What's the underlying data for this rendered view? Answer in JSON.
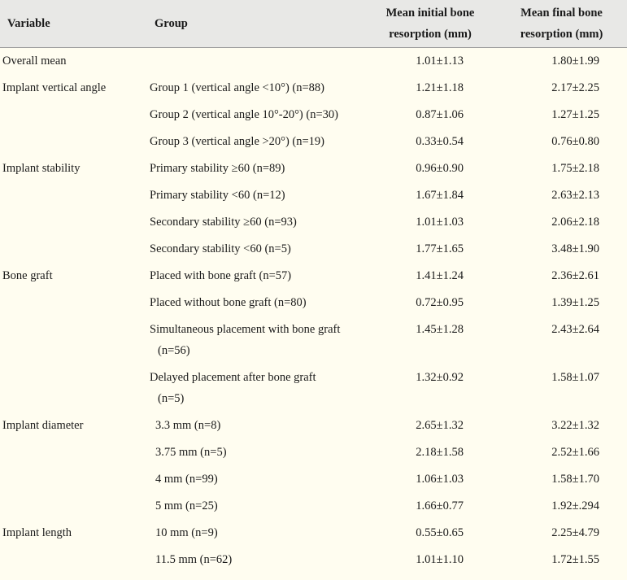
{
  "headers": {
    "variable": "Variable",
    "group": "Group",
    "initial_line1": "Mean initial bone",
    "initial_line2": "resorption (mm)",
    "final_line1": "Mean final bone",
    "final_line2": "resorption (mm)"
  },
  "rows": [
    {
      "variable": "Overall mean",
      "group": "",
      "group_cont": "",
      "initial": "1.01±1.13",
      "final": "1.80±1.99"
    },
    {
      "variable": "Implant vertical angle",
      "group": "Group 1 (vertical angle <10°) (n=88)",
      "group_cont": "",
      "initial": "1.21±1.18",
      "final": "2.17±2.25"
    },
    {
      "variable": "",
      "group": "Group 2 (vertical angle 10°-20°) (n=30)",
      "group_cont": "",
      "initial": "0.87±1.06",
      "final": "1.27±1.25"
    },
    {
      "variable": "",
      "group": "Group 3 (vertical angle >20°) (n=19)",
      "group_cont": "",
      "initial": "0.33±0.54",
      "final": "0.76±0.80"
    },
    {
      "variable": "Implant stability",
      "group": "Primary stability ≥60 (n=89)",
      "group_cont": "",
      "initial": "0.96±0.90",
      "final": "1.75±2.18"
    },
    {
      "variable": "",
      "group": "Primary stability <60 (n=12)",
      "group_cont": "",
      "initial": "1.67±1.84",
      "final": "2.63±2.13"
    },
    {
      "variable": "",
      "group": "Secondary stability ≥60 (n=93)",
      "group_cont": "",
      "initial": "1.01±1.03",
      "final": "2.06±2.18"
    },
    {
      "variable": "",
      "group": "Secondary stability <60 (n=5)",
      "group_cont": "",
      "initial": "1.77±1.65",
      "final": "3.48±1.90"
    },
    {
      "variable": "Bone graft",
      "group": "Placed with bone graft (n=57)",
      "group_cont": "",
      "initial": "1.41±1.24",
      "final": "2.36±2.61"
    },
    {
      "variable": "",
      "group": "Placed without bone graft (n=80)",
      "group_cont": "",
      "initial": "0.72±0.95",
      "final": "1.39±1.25"
    },
    {
      "variable": "",
      "group": "Simultaneous placement with bone graft",
      "group_cont": "(n=56)",
      "initial": "1.45±1.28",
      "final": "2.43±2.64"
    },
    {
      "variable": "",
      "group": "Delayed placement after bone graft",
      "group_cont": "(n=5)",
      "initial": "1.32±0.92",
      "final": "1.58±1.07"
    },
    {
      "variable": "Implant diameter",
      "group": "3.3 mm (n=8)",
      "group_cont": "",
      "initial": "2.65±1.32",
      "final": "3.22±1.32"
    },
    {
      "variable": "",
      "group": "3.75 mm (n=5)",
      "group_cont": "",
      "initial": "2.18±1.58",
      "final": "2.52±1.66"
    },
    {
      "variable": "",
      "group": "4 mm (n=99)",
      "group_cont": "",
      "initial": "1.06±1.03",
      "final": "1.58±1.70"
    },
    {
      "variable": "",
      "group": "5 mm (n=25)",
      "group_cont": "",
      "initial": "1.66±0.77",
      "final": "1.92±.294"
    },
    {
      "variable": "Implant length",
      "group": "10 mm (n=9)",
      "group_cont": "",
      "initial": "0.55±0.65",
      "final": "2.25±4.79"
    },
    {
      "variable": "",
      "group": "11.5 mm (n=62)",
      "group_cont": "",
      "initial": "1.01±1.10",
      "final": "1.72±1.55"
    }
  ]
}
